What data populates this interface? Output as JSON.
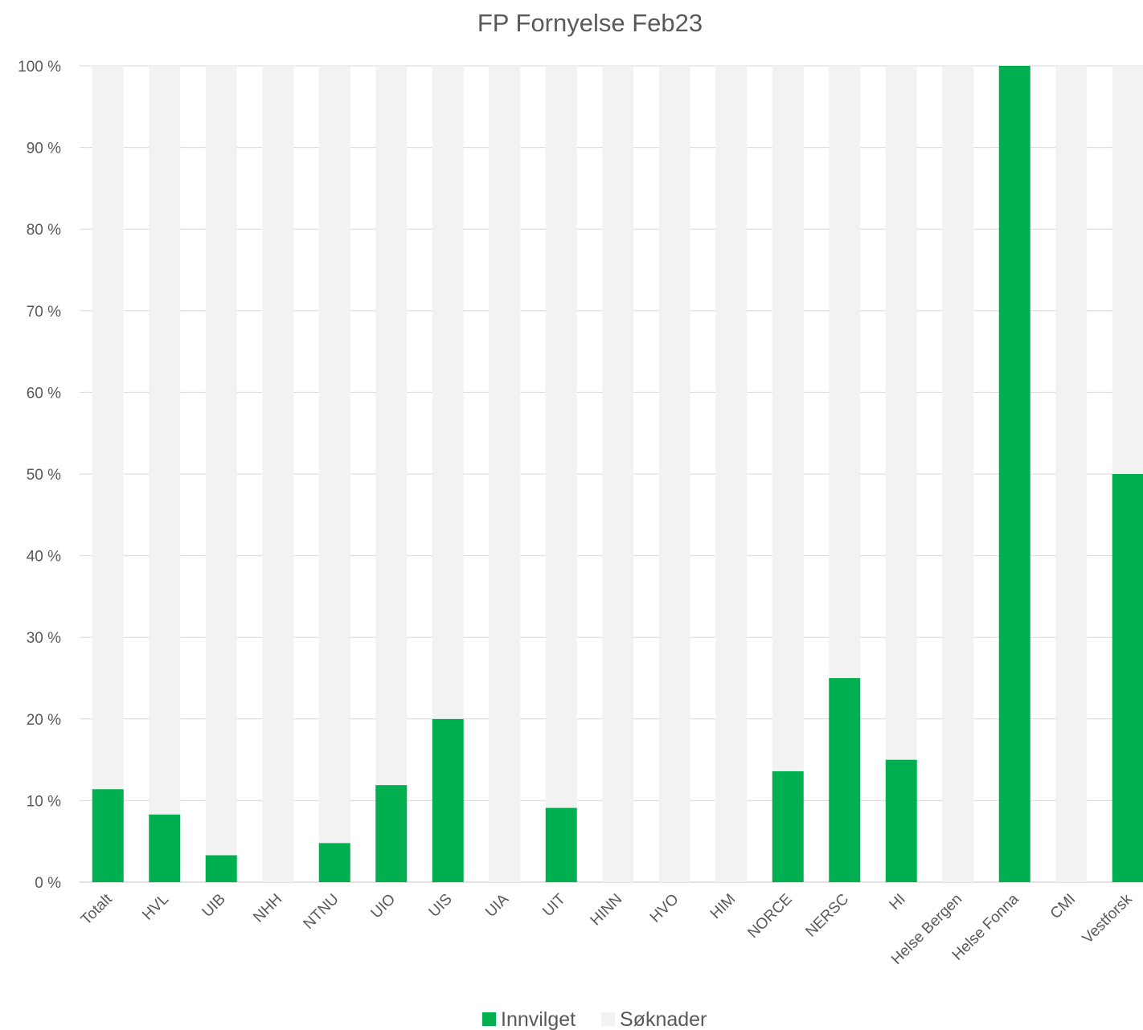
{
  "chart_data": {
    "type": "bar",
    "stacked": true,
    "title": "FP Fornyelse Feb23",
    "xlabel": "",
    "ylabel": "",
    "ylim": [
      0,
      100
    ],
    "y_ticks": [
      0,
      10,
      20,
      30,
      40,
      50,
      60,
      70,
      80,
      90,
      100
    ],
    "y_tick_labels": [
      "0 %",
      "10 %",
      "20 %",
      "30 %",
      "40 %",
      "50 %",
      "60 %",
      "70 %",
      "80 %",
      "90 %",
      "100 %"
    ],
    "grid": true,
    "legend_position": "bottom",
    "categories": [
      "Totalt",
      "HVL",
      "UIB",
      "NHH",
      "NTNU",
      "UIO",
      "UIS",
      "UIA",
      "UIT",
      "HINN",
      "HVO",
      "HIM",
      "NORCE",
      "NERSC",
      "HI",
      "Helse Bergen",
      "Helse Fonna",
      "CMI",
      "Vestforsk"
    ],
    "series": [
      {
        "name": "Innvilget",
        "color": "#00B050",
        "values": [
          11.4,
          8.3,
          3.3,
          0,
          4.8,
          11.9,
          20.0,
          0,
          9.1,
          0,
          0,
          0,
          13.6,
          25.0,
          15.0,
          0,
          100,
          0,
          50.0
        ]
      },
      {
        "name": "Søknader",
        "color": "#F2F2F2",
        "values": [
          88.6,
          91.7,
          96.7,
          100,
          95.2,
          88.1,
          80.0,
          100,
          90.9,
          100,
          100,
          100,
          86.4,
          75.0,
          85.0,
          100,
          0,
          100,
          50.0
        ]
      }
    ]
  }
}
